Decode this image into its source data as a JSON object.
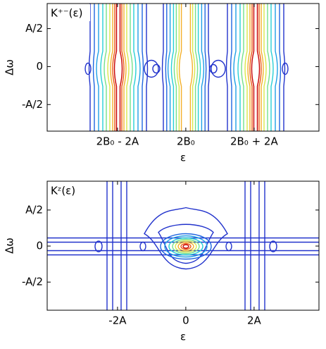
{
  "chart_data": [
    {
      "type": "contour",
      "label": "K⁺⁻(ε)",
      "xlabel": "ε",
      "ylabel": "Δω",
      "xlim": [
        -4.06,
        3.9
      ],
      "ylim": [
        -0.85,
        0.83
      ],
      "xticks": [
        {
          "value": -2,
          "label": "2B₀ - 2A"
        },
        {
          "value": 0,
          "label": "2B₀"
        },
        {
          "value": 2,
          "label": "2B₀ + 2A"
        }
      ],
      "yticks": [
        {
          "value": 0.5,
          "label": "A/2"
        },
        0,
        {
          "value": -0.5,
          "label": "-A/2"
        }
      ]
    },
    {
      "type": "contour",
      "label": "Kᶻ(ε)",
      "xlabel": "ε",
      "ylabel": "Δω",
      "xlim": [
        -4.06,
        3.9
      ],
      "ylim": [
        -0.89,
        0.9
      ],
      "xticks": [
        {
          "value": -2,
          "label": "-2A"
        },
        0,
        {
          "value": 2,
          "label": "2A"
        }
      ],
      "yticks": [
        {
          "value": 0.5,
          "label": "A/2"
        },
        0,
        {
          "value": -0.5,
          "label": "-A/2"
        }
      ]
    }
  ]
}
